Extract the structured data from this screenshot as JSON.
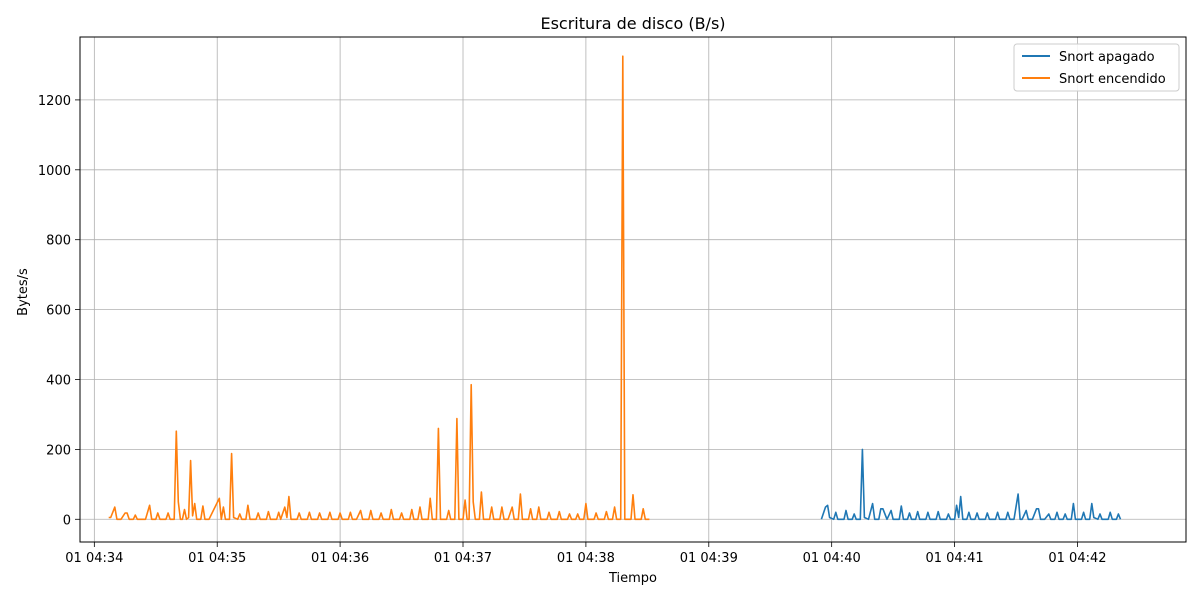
{
  "chart_data": {
    "type": "line",
    "title": "Escritura de disco (B/s)",
    "xlabel": "Tiempo",
    "ylabel": "Bytes/s",
    "xlim": [
      "04:33:53",
      "04:42:53"
    ],
    "ylim": [
      -65,
      1380
    ],
    "x_tick_labels": [
      "01 04:34",
      "01 04:35",
      "01 04:36",
      "01 04:37",
      "01 04:38",
      "01 04:39",
      "01 04:40",
      "01 04:41",
      "01 04:42"
    ],
    "y_ticks": [
      0,
      200,
      400,
      600,
      800,
      1000,
      1200
    ],
    "grid": true,
    "legend_position": "top-right",
    "series": [
      {
        "name": "Snort apagado",
        "color": "#1f77b4",
        "points": [
          [
            "04:39:55",
            0
          ],
          [
            "04:39:57",
            35
          ],
          [
            "04:39:58",
            40
          ],
          [
            "04:39:59",
            5
          ],
          [
            "04:40:01",
            0
          ],
          [
            "04:40:02",
            20
          ],
          [
            "04:40:03",
            0
          ],
          [
            "04:40:06",
            0
          ],
          [
            "04:40:07",
            25
          ],
          [
            "04:40:08",
            0
          ],
          [
            "04:40:10",
            0
          ],
          [
            "04:40:11",
            15
          ],
          [
            "04:40:12",
            0
          ],
          [
            "04:40:14",
            0
          ],
          [
            "04:40:15",
            200
          ],
          [
            "04:40:16",
            5
          ],
          [
            "04:40:18",
            0
          ],
          [
            "04:40:20",
            45
          ],
          [
            "04:40:21",
            0
          ],
          [
            "04:40:23",
            0
          ],
          [
            "04:40:24",
            30
          ],
          [
            "04:40:25",
            30
          ],
          [
            "04:40:27",
            0
          ],
          [
            "04:40:29",
            25
          ],
          [
            "04:40:30",
            0
          ],
          [
            "04:40:33",
            0
          ],
          [
            "04:40:34",
            38
          ],
          [
            "04:40:35",
            0
          ],
          [
            "04:40:37",
            0
          ],
          [
            "04:40:38",
            18
          ],
          [
            "04:40:39",
            0
          ],
          [
            "04:40:41",
            0
          ],
          [
            "04:40:42",
            22
          ],
          [
            "04:40:43",
            0
          ],
          [
            "04:40:46",
            0
          ],
          [
            "04:40:47",
            20
          ],
          [
            "04:40:48",
            0
          ],
          [
            "04:40:51",
            0
          ],
          [
            "04:40:52",
            22
          ],
          [
            "04:40:53",
            0
          ],
          [
            "04:40:56",
            0
          ],
          [
            "04:40:57",
            15
          ],
          [
            "04:40:58",
            0
          ],
          [
            "04:41:00",
            0
          ],
          [
            "04:41:01",
            40
          ],
          [
            "04:41:02",
            5
          ],
          [
            "04:41:03",
            65
          ],
          [
            "04:41:04",
            0
          ],
          [
            "04:41:06",
            0
          ],
          [
            "04:41:07",
            20
          ],
          [
            "04:41:08",
            0
          ],
          [
            "04:41:10",
            0
          ],
          [
            "04:41:11",
            18
          ],
          [
            "04:41:12",
            0
          ],
          [
            "04:41:15",
            0
          ],
          [
            "04:41:16",
            18
          ],
          [
            "04:41:17",
            0
          ],
          [
            "04:41:20",
            0
          ],
          [
            "04:41:21",
            20
          ],
          [
            "04:41:22",
            0
          ],
          [
            "04:41:25",
            0
          ],
          [
            "04:41:26",
            20
          ],
          [
            "04:41:27",
            0
          ],
          [
            "04:41:29",
            0
          ],
          [
            "04:41:31",
            72
          ],
          [
            "04:41:32",
            0
          ],
          [
            "04:41:33",
            0
          ],
          [
            "04:41:35",
            25
          ],
          [
            "04:41:36",
            0
          ],
          [
            "04:41:38",
            0
          ],
          [
            "04:41:40",
            30
          ],
          [
            "04:41:41",
            30
          ],
          [
            "04:41:42",
            0
          ],
          [
            "04:41:44",
            0
          ],
          [
            "04:41:46",
            15
          ],
          [
            "04:41:47",
            0
          ],
          [
            "04:41:49",
            0
          ],
          [
            "04:41:50",
            20
          ],
          [
            "04:41:51",
            0
          ],
          [
            "04:41:53",
            0
          ],
          [
            "04:41:54",
            15
          ],
          [
            "04:41:55",
            0
          ],
          [
            "04:41:57",
            0
          ],
          [
            "04:41:58",
            45
          ],
          [
            "04:41:59",
            0
          ],
          [
            "04:42:02",
            0
          ],
          [
            "04:42:03",
            20
          ],
          [
            "04:42:04",
            0
          ],
          [
            "04:42:06",
            0
          ],
          [
            "04:42:07",
            45
          ],
          [
            "04:42:08",
            5
          ],
          [
            "04:42:10",
            0
          ],
          [
            "04:42:11",
            15
          ],
          [
            "04:42:12",
            0
          ],
          [
            "04:42:15",
            0
          ],
          [
            "04:42:16",
            20
          ],
          [
            "04:42:17",
            0
          ],
          [
            "04:42:19",
            0
          ],
          [
            "04:42:20",
            15
          ],
          [
            "04:42:21",
            0
          ]
        ]
      },
      {
        "name": "Snort encendido",
        "color": "#ff7f0e",
        "points": [
          [
            "04:34:07",
            5
          ],
          [
            "04:34:08",
            5
          ],
          [
            "04:34:10",
            35
          ],
          [
            "04:34:11",
            0
          ],
          [
            "04:34:13",
            0
          ],
          [
            "04:34:15",
            18
          ],
          [
            "04:34:16",
            18
          ],
          [
            "04:34:17",
            0
          ],
          [
            "04:34:19",
            0
          ],
          [
            "04:34:20",
            12
          ],
          [
            "04:34:21",
            0
          ],
          [
            "04:34:25",
            0
          ],
          [
            "04:34:27",
            40
          ],
          [
            "04:34:28",
            0
          ],
          [
            "04:34:30",
            0
          ],
          [
            "04:34:31",
            18
          ],
          [
            "04:34:32",
            0
          ],
          [
            "04:34:35",
            0
          ],
          [
            "04:34:36",
            18
          ],
          [
            "04:34:37",
            0
          ],
          [
            "04:34:39",
            0
          ],
          [
            "04:34:40",
            252
          ],
          [
            "04:34:41",
            50
          ],
          [
            "04:34:42",
            0
          ],
          [
            "04:34:43",
            0
          ],
          [
            "04:34:44",
            28
          ],
          [
            "04:34:45",
            0
          ],
          [
            "04:34:46",
            5
          ],
          [
            "04:34:47",
            168
          ],
          [
            "04:34:48",
            10
          ],
          [
            "04:34:49",
            45
          ],
          [
            "04:34:50",
            0
          ],
          [
            "04:34:52",
            0
          ],
          [
            "04:34:53",
            38
          ],
          [
            "04:34:54",
            0
          ],
          [
            "04:34:56",
            0
          ],
          [
            "04:35:01",
            60
          ],
          [
            "04:35:02",
            0
          ],
          [
            "04:35:03",
            35
          ],
          [
            "04:35:04",
            0
          ],
          [
            "04:35:06",
            0
          ],
          [
            "04:35:07",
            188
          ],
          [
            "04:35:08",
            5
          ],
          [
            "04:35:10",
            0
          ],
          [
            "04:35:11",
            15
          ],
          [
            "04:35:12",
            0
          ],
          [
            "04:35:14",
            0
          ],
          [
            "04:35:15",
            40
          ],
          [
            "04:35:16",
            0
          ],
          [
            "04:35:19",
            0
          ],
          [
            "04:35:20",
            18
          ],
          [
            "04:35:21",
            0
          ],
          [
            "04:35:24",
            0
          ],
          [
            "04:35:25",
            22
          ],
          [
            "04:35:26",
            0
          ],
          [
            "04:35:29",
            0
          ],
          [
            "04:35:30",
            20
          ],
          [
            "04:35:31",
            0
          ],
          [
            "04:35:33",
            35
          ],
          [
            "04:35:34",
            5
          ],
          [
            "04:35:35",
            65
          ],
          [
            "04:35:36",
            0
          ],
          [
            "04:35:39",
            0
          ],
          [
            "04:35:40",
            18
          ],
          [
            "04:35:41",
            0
          ],
          [
            "04:35:44",
            0
          ],
          [
            "04:35:45",
            20
          ],
          [
            "04:35:46",
            0
          ],
          [
            "04:35:49",
            0
          ],
          [
            "04:35:50",
            18
          ],
          [
            "04:35:51",
            0
          ],
          [
            "04:35:54",
            0
          ],
          [
            "04:35:55",
            20
          ],
          [
            "04:35:56",
            0
          ],
          [
            "04:35:59",
            0
          ],
          [
            "04:36:00",
            18
          ],
          [
            "04:36:01",
            0
          ],
          [
            "04:36:04",
            0
          ],
          [
            "04:36:05",
            20
          ],
          [
            "04:36:06",
            0
          ],
          [
            "04:36:08",
            0
          ],
          [
            "04:36:10",
            25
          ],
          [
            "04:36:11",
            0
          ],
          [
            "04:36:14",
            0
          ],
          [
            "04:36:15",
            25
          ],
          [
            "04:36:16",
            0
          ],
          [
            "04:36:19",
            0
          ],
          [
            "04:36:20",
            18
          ],
          [
            "04:36:21",
            0
          ],
          [
            "04:36:24",
            0
          ],
          [
            "04:36:25",
            28
          ],
          [
            "04:36:26",
            0
          ],
          [
            "04:36:29",
            0
          ],
          [
            "04:36:30",
            18
          ],
          [
            "04:36:31",
            0
          ],
          [
            "04:36:34",
            0
          ],
          [
            "04:36:35",
            28
          ],
          [
            "04:36:36",
            0
          ],
          [
            "04:36:38",
            0
          ],
          [
            "04:36:39",
            35
          ],
          [
            "04:36:40",
            0
          ],
          [
            "04:36:43",
            0
          ],
          [
            "04:36:44",
            60
          ],
          [
            "04:36:45",
            0
          ],
          [
            "04:36:47",
            0
          ],
          [
            "04:36:48",
            260
          ],
          [
            "04:36:49",
            0
          ],
          [
            "04:36:52",
            0
          ],
          [
            "04:36:53",
            25
          ],
          [
            "04:36:54",
            0
          ],
          [
            "04:36:56",
            0
          ],
          [
            "04:36:57",
            288
          ],
          [
            "04:36:58",
            0
          ],
          [
            "04:37:00",
            0
          ],
          [
            "04:37:01",
            55
          ],
          [
            "04:37:02",
            0
          ],
          [
            "04:37:03",
            0
          ],
          [
            "04:37:04",
            385
          ],
          [
            "04:37:05",
            50
          ],
          [
            "04:37:06",
            0
          ],
          [
            "04:37:08",
            0
          ],
          [
            "04:37:09",
            78
          ],
          [
            "04:37:10",
            0
          ],
          [
            "04:37:13",
            0
          ],
          [
            "04:37:14",
            35
          ],
          [
            "04:37:15",
            0
          ],
          [
            "04:37:18",
            0
          ],
          [
            "04:37:19",
            35
          ],
          [
            "04:37:20",
            0
          ],
          [
            "04:37:22",
            0
          ],
          [
            "04:37:24",
            35
          ],
          [
            "04:37:25",
            0
          ],
          [
            "04:37:27",
            0
          ],
          [
            "04:37:28",
            72
          ],
          [
            "04:37:29",
            0
          ],
          [
            "04:37:32",
            0
          ],
          [
            "04:37:33",
            30
          ],
          [
            "04:37:34",
            0
          ],
          [
            "04:37:36",
            0
          ],
          [
            "04:37:37",
            35
          ],
          [
            "04:37:38",
            0
          ],
          [
            "04:37:41",
            0
          ],
          [
            "04:37:42",
            20
          ],
          [
            "04:37:43",
            0
          ],
          [
            "04:37:46",
            0
          ],
          [
            "04:37:47",
            22
          ],
          [
            "04:37:48",
            0
          ],
          [
            "04:37:51",
            0
          ],
          [
            "04:37:52",
            15
          ],
          [
            "04:37:53",
            0
          ],
          [
            "04:37:55",
            0
          ],
          [
            "04:37:56",
            15
          ],
          [
            "04:37:57",
            0
          ],
          [
            "04:37:59",
            0
          ],
          [
            "04:38:00",
            45
          ],
          [
            "04:38:01",
            0
          ],
          [
            "04:38:04",
            0
          ],
          [
            "04:38:05",
            18
          ],
          [
            "04:38:06",
            0
          ],
          [
            "04:38:09",
            0
          ],
          [
            "04:38:10",
            22
          ],
          [
            "04:38:11",
            0
          ],
          [
            "04:38:13",
            0
          ],
          [
            "04:38:14",
            35
          ],
          [
            "04:38:15",
            0
          ],
          [
            "04:38:17",
            0
          ],
          [
            "04:38:18",
            1325
          ],
          [
            "04:38:19",
            0
          ],
          [
            "04:38:22",
            0
          ],
          [
            "04:38:23",
            70
          ],
          [
            "04:38:24",
            0
          ],
          [
            "04:38:27",
            0
          ],
          [
            "04:38:28",
            30
          ],
          [
            "04:38:29",
            0
          ],
          [
            "04:38:31",
            0
          ]
        ]
      }
    ]
  }
}
